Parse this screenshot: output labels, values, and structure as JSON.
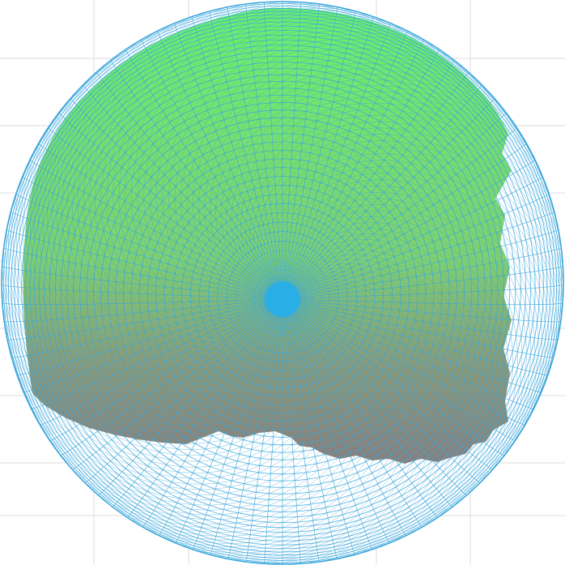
{
  "colors": {
    "background": "#ffffff",
    "grid": "#dcdcdc",
    "mesh_stroke": "#3aa6dc",
    "fill_top": "#6cf06c",
    "fill_bottom": "#8a7e7a",
    "pole": "#2aaee6"
  },
  "mesh": {
    "latitude_rings": 48,
    "longitude_segments": 96
  }
}
